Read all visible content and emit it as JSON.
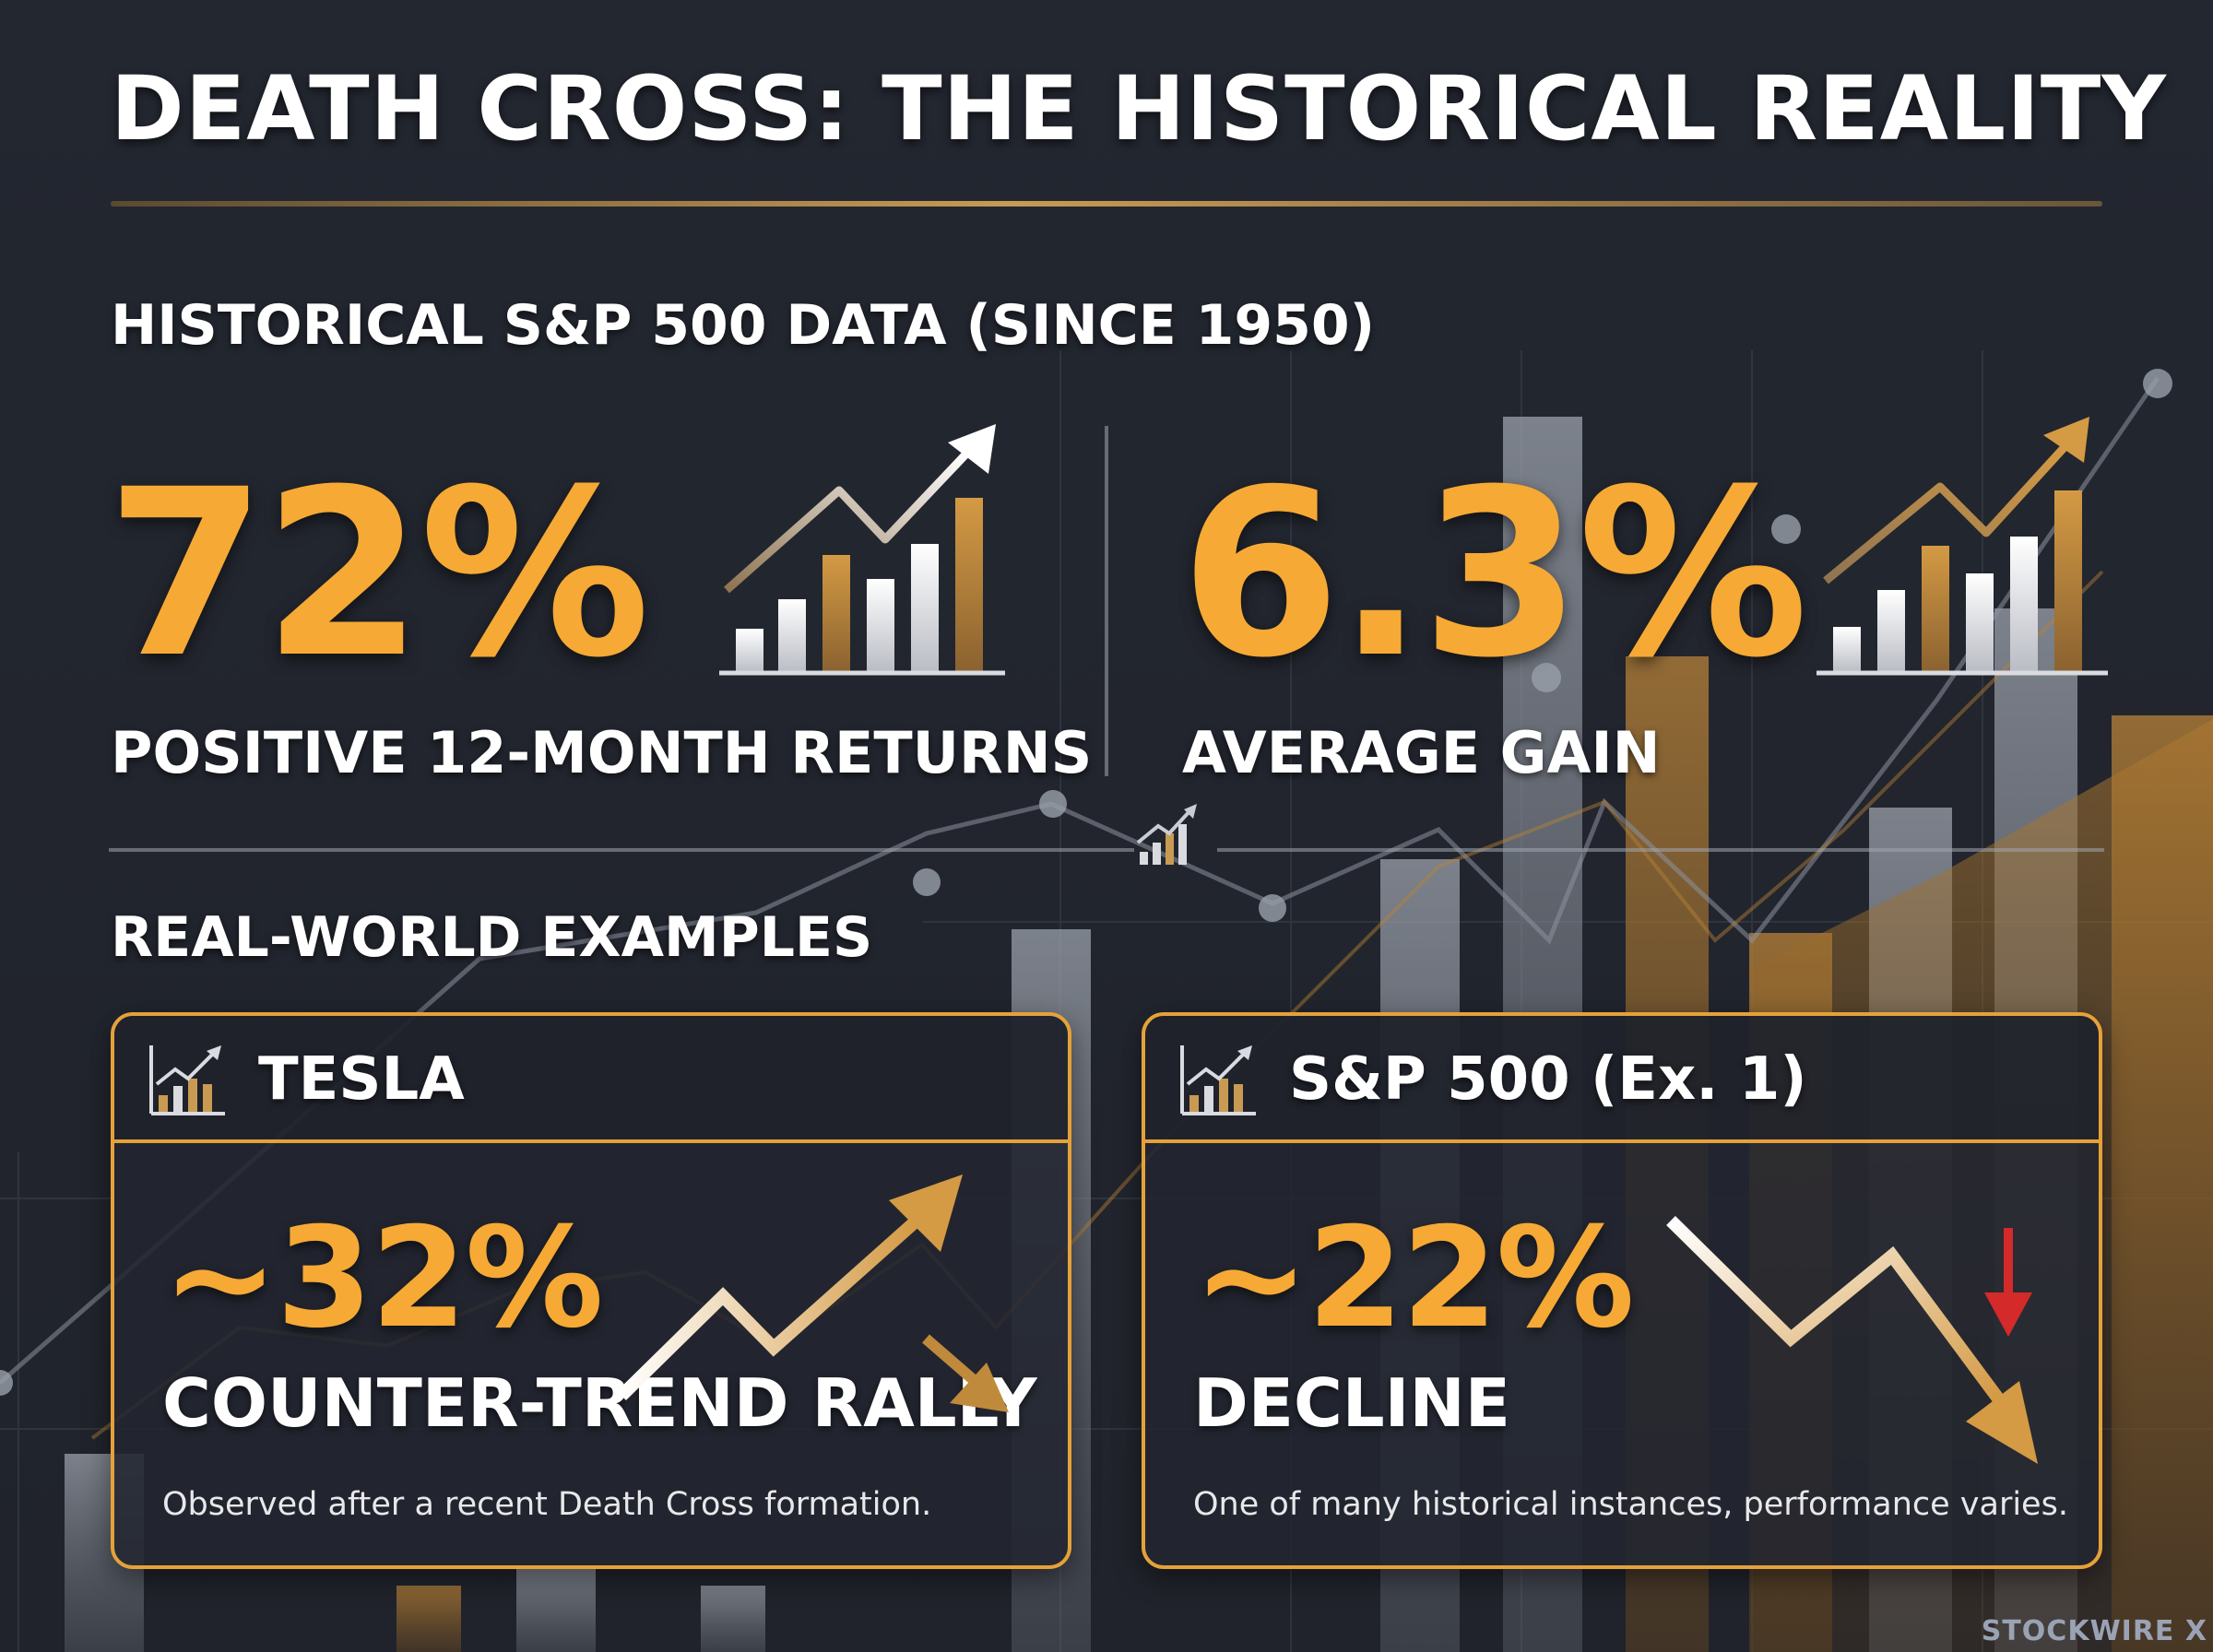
{
  "title": "DEATH CROSS: THE HISTORICAL REALITY",
  "historical": {
    "heading": "HISTORICAL S&P 500 DATA (SINCE 1950)",
    "stats": [
      {
        "value": "72%",
        "label": "POSITIVE 12-MONTH RETURNS",
        "icon": "rising-bar-chart-icon"
      },
      {
        "value": "6.3%",
        "label": "AVERAGE GAIN",
        "icon": "rising-bar-chart-icon"
      }
    ]
  },
  "examples": {
    "heading": "REAL-WORLD EXAMPLES",
    "cards": [
      {
        "title": "TESLA",
        "value": "~32%",
        "label": "COUNTER-TREND RALLY",
        "note": "Observed after a recent Death Cross formation.",
        "icon": "bar-chart-icon",
        "trend_icon": "up-trend-arrow-icon"
      },
      {
        "title": "S&P 500 (Ex. 1)",
        "value": "~22%",
        "label": "DECLINE",
        "note": "One of many historical instances, performance varies.",
        "icon": "bar-chart-icon",
        "trend_icon": "down-trend-arrow-icon"
      }
    ]
  },
  "brand": "STOCKWIRE X",
  "colors": {
    "background": "#222630",
    "accent": "#f6a934",
    "border": "#e5a13a",
    "text": "#ffffff",
    "decline_arrow": "#d42a2a"
  }
}
